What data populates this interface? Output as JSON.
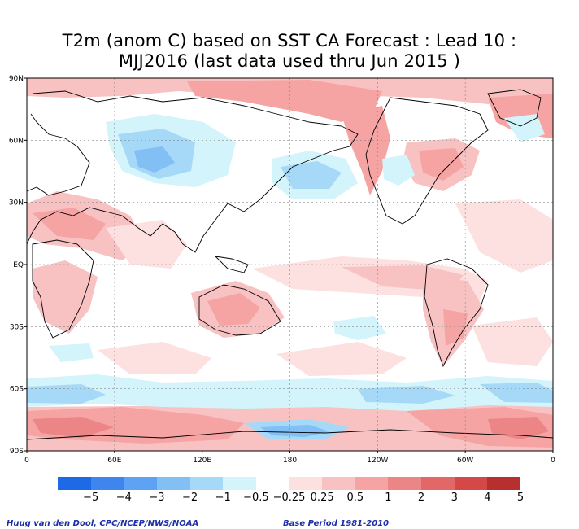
{
  "title_line1": "T2m (anom C) based on SST CA Forecast : Lead 10 :",
  "title_line2": "MJJ2016 (last data used thru Jun 2015 )",
  "lat_labels": [
    "90N",
    "60N",
    "30N",
    "EQ",
    "30S",
    "60S",
    "90S"
  ],
  "lat_values": [
    90,
    60,
    30,
    0,
    -30,
    -60,
    -90
  ],
  "lon_labels": [
    "0",
    "60E",
    "120E",
    "180",
    "120W",
    "60W",
    "0"
  ],
  "lon_values": [
    0,
    60,
    120,
    180,
    240,
    300,
    360
  ],
  "legend": {
    "colors": [
      "#1e6ae6",
      "#3e86ee",
      "#5ea3f3",
      "#82bff5",
      "#a6d9f7",
      "#d2f4fa",
      "#ffffff",
      "#fde0e0",
      "#f9c2c2",
      "#f5a3a3",
      "#ec8686",
      "#e26767",
      "#d44848",
      "#b72f2f"
    ],
    "labels": [
      "−5",
      "−4",
      "−3",
      "−2",
      "−1",
      "−0.5",
      "−0.25",
      "0.25",
      "0.5",
      "1",
      "2",
      "3",
      "4",
      "5"
    ]
  },
  "credit": "Huug van den Dool, CPC/NCEP/NWS/NOAA",
  "base_period": "Base Period 1981-2010"
}
